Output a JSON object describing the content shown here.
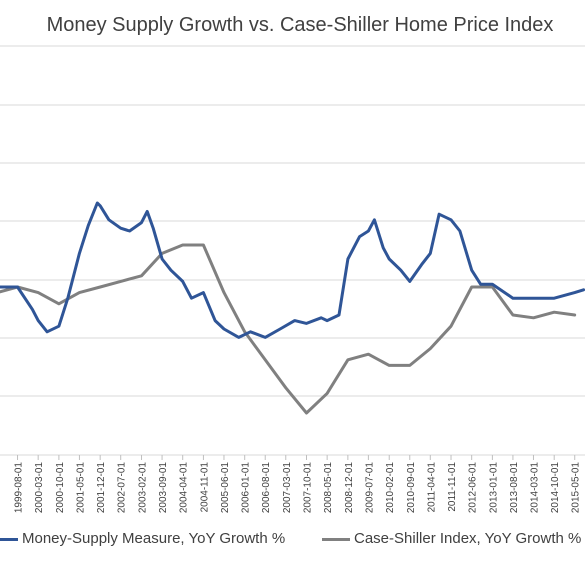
{
  "chart_data": {
    "type": "line",
    "title": "Money Supply Growth vs. Case-Shiller Home Price Index",
    "xlabel": "",
    "ylabel": "",
    "grid": true,
    "legend_position": "bottom",
    "x_ticks": [
      "1999-08-01",
      "2000-03-01",
      "2000-10-01",
      "2001-05-01",
      "2001-12-01",
      "2002-07-01",
      "2003-02-01",
      "2003-09-01",
      "2004-04-01",
      "2004-11-01",
      "2005-06-01",
      "2006-01-01",
      "2006-08-01",
      "2007-03-01",
      "2007-10-01",
      "2008-05-01",
      "2008-12-01",
      "2009-07-01",
      "2010-02-01",
      "2010-09-01",
      "2011-04-01",
      "2011-11-01",
      "2012-06-01",
      "2013-01-01",
      "2013-08-01",
      "2014-03-01",
      "2014-10-01",
      "2015-05-01"
    ],
    "series": [
      {
        "name": "Money-Supply Measure, YoY Growth %",
        "color": "#2f5597",
        "points": [
          [
            "1999-01-01",
            0.0
          ],
          [
            "1999-08-01",
            0.0
          ],
          [
            "2000-01-01",
            -0.4
          ],
          [
            "2000-03-01",
            -0.6
          ],
          [
            "2000-06-01",
            -0.8
          ],
          [
            "2000-10-01",
            -0.7
          ],
          [
            "2001-01-01",
            -0.2
          ],
          [
            "2001-05-01",
            0.6
          ],
          [
            "2001-08-01",
            1.1
          ],
          [
            "2001-11-01",
            1.5
          ],
          [
            "2001-12-01",
            1.45
          ],
          [
            "2002-03-01",
            1.2
          ],
          [
            "2002-07-01",
            1.05
          ],
          [
            "2002-10-01",
            1.0
          ],
          [
            "2003-02-01",
            1.15
          ],
          [
            "2003-04-01",
            1.35
          ],
          [
            "2003-06-01",
            1.05
          ],
          [
            "2003-09-01",
            0.5
          ],
          [
            "2003-12-01",
            0.3
          ],
          [
            "2004-04-01",
            0.1
          ],
          [
            "2004-07-01",
            -0.2
          ],
          [
            "2004-11-01",
            -0.1
          ],
          [
            "2005-03-01",
            -0.6
          ],
          [
            "2005-06-01",
            -0.75
          ],
          [
            "2005-11-01",
            -0.9
          ],
          [
            "2006-03-01",
            -0.8
          ],
          [
            "2006-08-01",
            -0.9
          ],
          [
            "2007-01-01",
            -0.75
          ],
          [
            "2007-06-01",
            -0.6
          ],
          [
            "2007-10-01",
            -0.65
          ],
          [
            "2008-03-01",
            -0.55
          ],
          [
            "2008-05-01",
            -0.6
          ],
          [
            "2008-09-01",
            -0.5
          ],
          [
            "2008-12-01",
            0.5
          ],
          [
            "2009-04-01",
            0.9
          ],
          [
            "2009-07-01",
            1.0
          ],
          [
            "2009-09-01",
            1.2
          ],
          [
            "2009-12-01",
            0.7
          ],
          [
            "2010-02-01",
            0.5
          ],
          [
            "2010-06-01",
            0.3
          ],
          [
            "2010-09-01",
            0.1
          ],
          [
            "2011-01-01",
            0.4
          ],
          [
            "2011-04-01",
            0.6
          ],
          [
            "2011-07-01",
            1.3
          ],
          [
            "2011-11-01",
            1.2
          ],
          [
            "2012-02-01",
            1.0
          ],
          [
            "2012-06-01",
            0.3
          ],
          [
            "2012-09-01",
            0.05
          ],
          [
            "2013-01-01",
            0.05
          ],
          [
            "2013-08-01",
            -0.2
          ],
          [
            "2014-03-01",
            -0.2
          ],
          [
            "2014-10-01",
            -0.2
          ],
          [
            "2015-05-01",
            -0.1
          ],
          [
            "2015-08-01",
            -0.05
          ]
        ]
      },
      {
        "name": "Case-Shiller Index, YoY Growth %",
        "color": "#808080",
        "points": [
          [
            "1999-01-01",
            -0.1
          ],
          [
            "1999-08-01",
            0.0
          ],
          [
            "2000-03-01",
            -0.1
          ],
          [
            "2000-10-01",
            -0.3
          ],
          [
            "2001-05-01",
            -0.1
          ],
          [
            "2001-12-01",
            0.0
          ],
          [
            "2002-07-01",
            0.1
          ],
          [
            "2003-02-01",
            0.2
          ],
          [
            "2003-09-01",
            0.6
          ],
          [
            "2004-04-01",
            0.75
          ],
          [
            "2004-11-01",
            0.75
          ],
          [
            "2005-06-01",
            -0.1
          ],
          [
            "2006-01-01",
            -0.8
          ],
          [
            "2006-08-01",
            -1.3
          ],
          [
            "2007-03-01",
            -1.8
          ],
          [
            "2007-10-01",
            -2.25
          ],
          [
            "2008-05-01",
            -1.9
          ],
          [
            "2008-12-01",
            -1.3
          ],
          [
            "2009-07-01",
            -1.2
          ],
          [
            "2010-02-01",
            -1.4
          ],
          [
            "2010-09-01",
            -1.4
          ],
          [
            "2011-04-01",
            -1.1
          ],
          [
            "2011-11-01",
            -0.7
          ],
          [
            "2012-06-01",
            0.0
          ],
          [
            "2013-01-01",
            0.0
          ],
          [
            "2013-08-01",
            -0.5
          ],
          [
            "2014-03-01",
            -0.55
          ],
          [
            "2014-10-01",
            -0.45
          ],
          [
            "2015-05-01",
            -0.5
          ]
        ]
      }
    ]
  }
}
